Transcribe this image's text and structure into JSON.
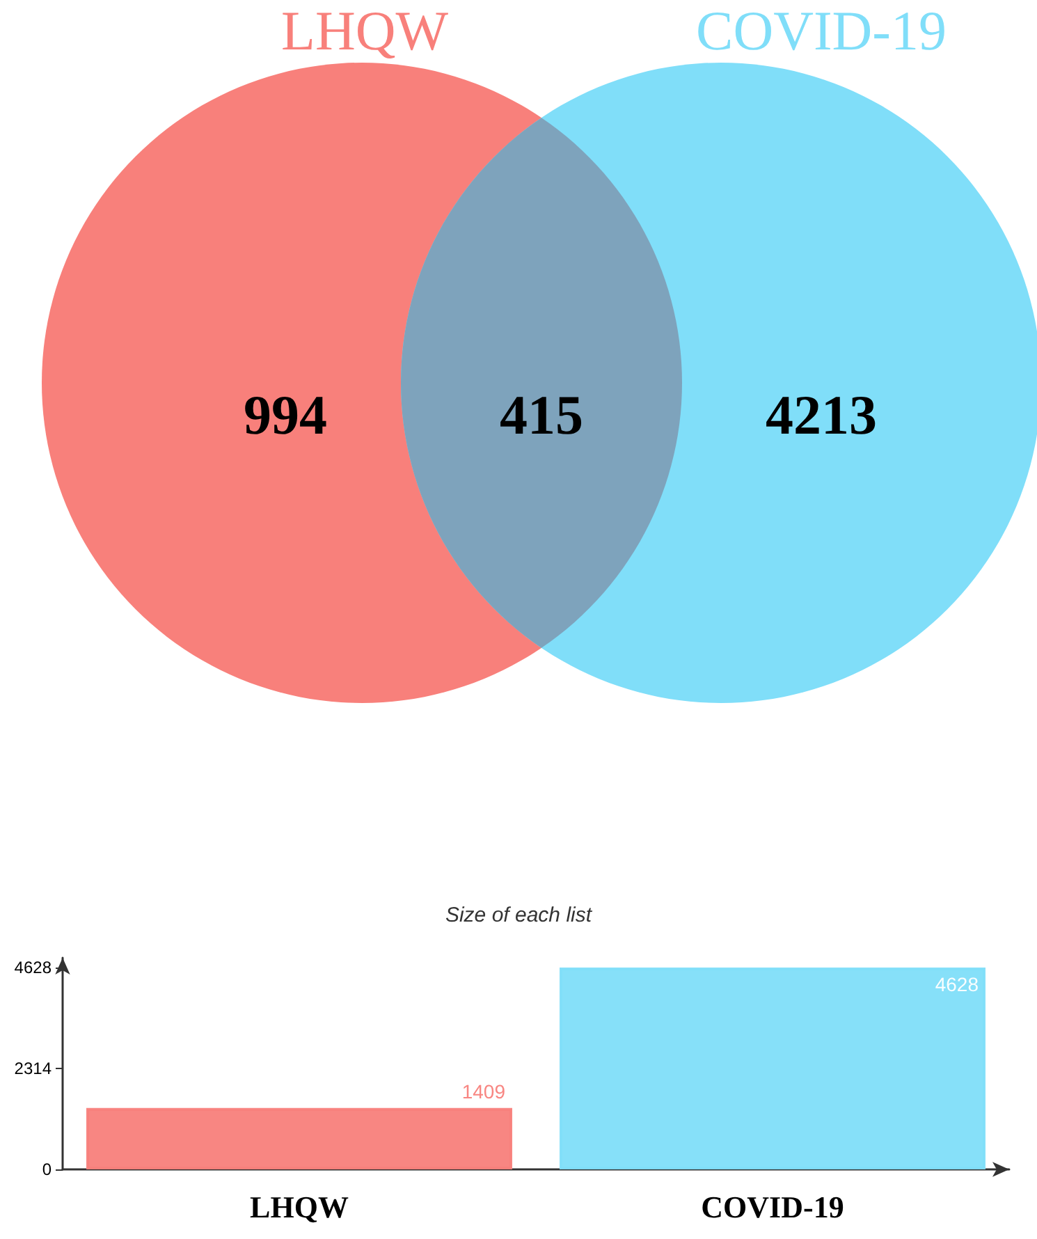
{
  "chart_data": [
    {
      "type": "other",
      "categories": [
        null,
        null,
        null
      ],
      "values": [
        994,
        415,
        4213
      ],
      "colors": [
        "#f8807b",
        "#7ea3bc",
        "#80def9"
      ],
      "data_labels": true,
      "annotations": [
        "LHQW",
        "COVID-19"
      ]
    },
    {
      "type": "bar",
      "title": "Size of each list",
      "categories": [
        "LHQW",
        "COVID-19"
      ],
      "values": [
        1409,
        4628
      ],
      "colors": [
        "#f8807b",
        "#80def9"
      ],
      "ylim": [
        0,
        4850
      ],
      "yticks": [
        0,
        2314,
        4628
      ],
      "grid": false,
      "data_labels": true
    }
  ]
}
